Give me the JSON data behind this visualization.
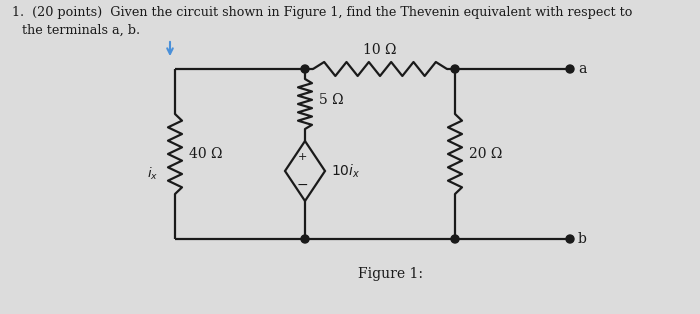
{
  "background_color": "#dcdcdc",
  "title_line1": "1.  (20 points)  Given the circuit shown in Figure 1, find the Thevenin equivalent with respect to",
  "title_line2": "the terminals a, b.",
  "figure_label": "Figure 1:",
  "text_color": "#1a1a1a",
  "circuit_color": "#1a1a1a",
  "node_color": "#1a1a1a",
  "arrow_color": "#4a90d9",
  "resistor_40": "40 Ω",
  "resistor_5": "5 Ω",
  "resistor_10": "10 Ω",
  "resistor_20": "20 Ω",
  "source_label": "10i_x",
  "current_label": "i_x",
  "terminal_a": "a",
  "terminal_b": "b",
  "plus_sign": "+",
  "minus_sign": "−"
}
